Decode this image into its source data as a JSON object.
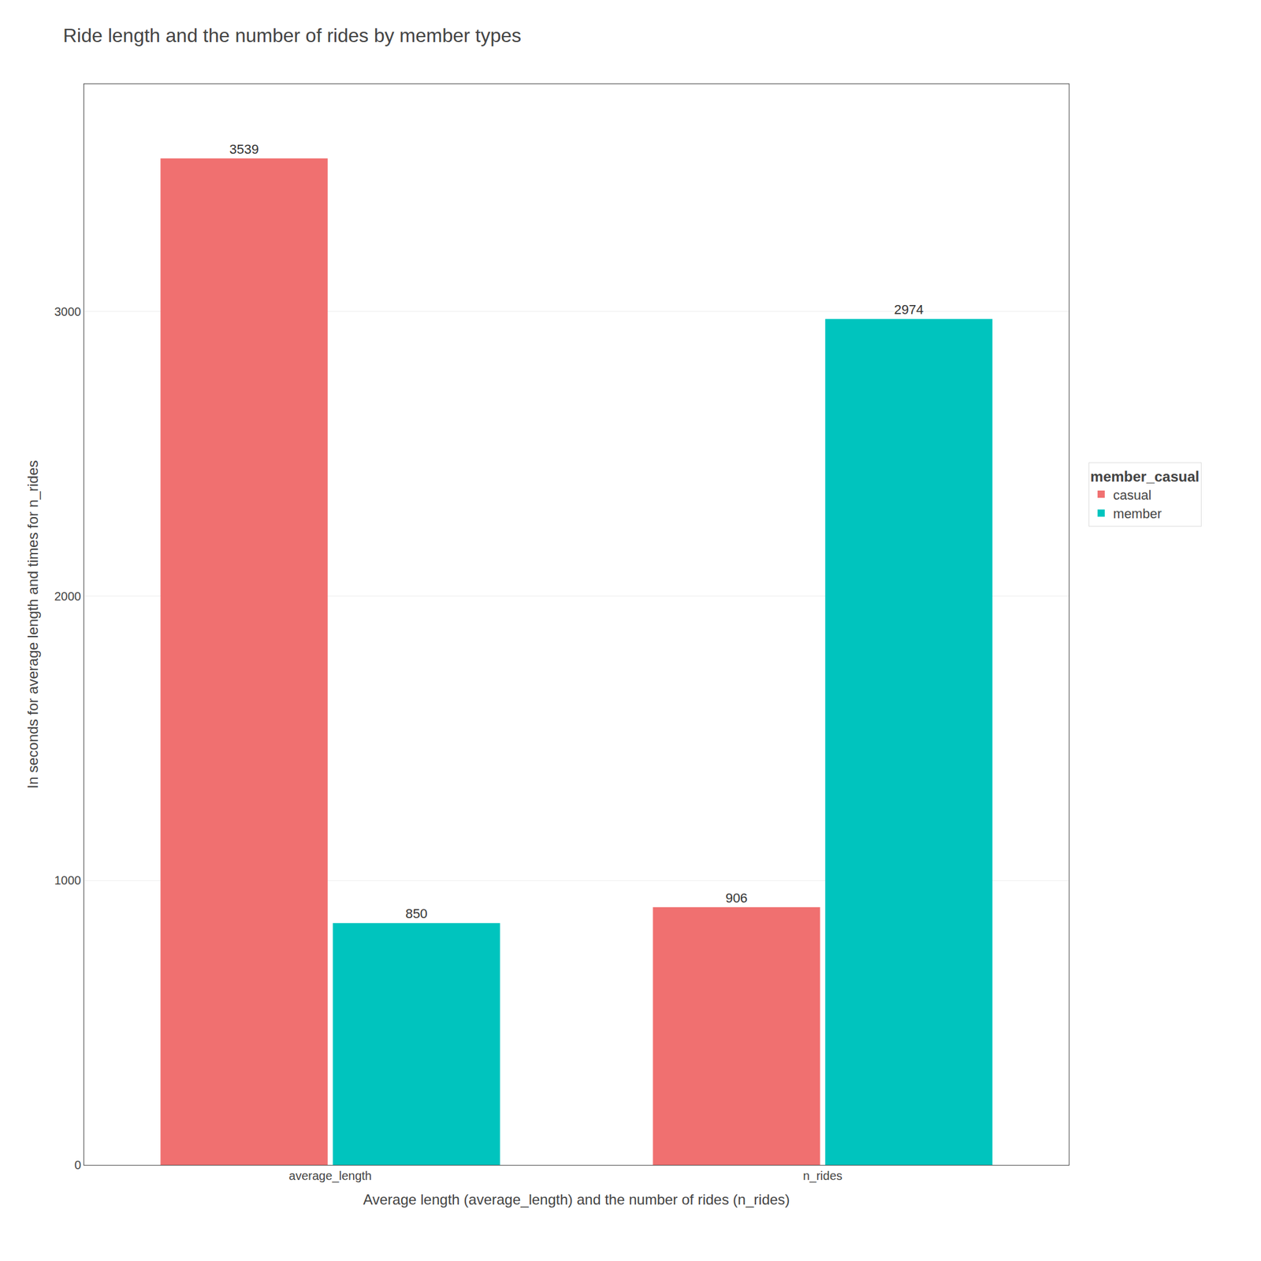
{
  "chart_data": {
    "type": "bar",
    "title": "Ride length and the number of rides by member types",
    "xlabel": "Average length (average_length) and the number of rides (n_rides)",
    "ylabel": "In seconds for average length and times for n_rides",
    "categories": [
      "average_length",
      "n_rides"
    ],
    "series": [
      {
        "name": "casual",
        "color": "#F07070",
        "values": [
          3539,
          906
        ]
      },
      {
        "name": "member",
        "color": "#00C4BE",
        "values": [
          850,
          2974
        ]
      }
    ],
    "ylim": [
      0,
      3800
    ],
    "yticks": [
      0,
      1000,
      2000,
      3000
    ],
    "grid": true,
    "data_labels": true,
    "legend": "right",
    "legend_title": "member_casual"
  }
}
